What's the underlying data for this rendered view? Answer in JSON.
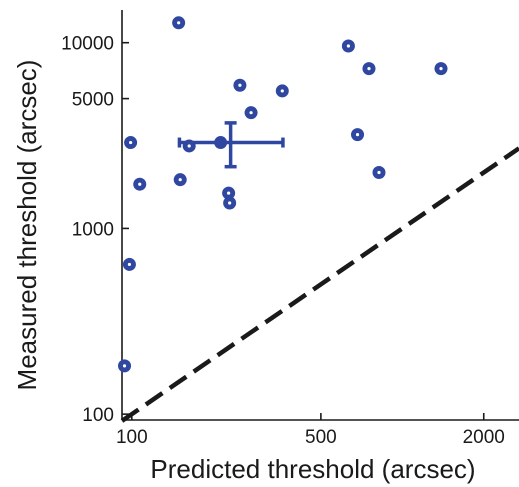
{
  "chart_data": {
    "type": "scatter",
    "xlabel": "Predicted threshold (arcsec)",
    "ylabel": "Measured threshold (arcsec)",
    "x_scale": "log",
    "y_scale": "log",
    "xlim": [
      92,
      2700
    ],
    "ylim": [
      93,
      15000
    ],
    "x_ticks": [
      100,
      500,
      2000
    ],
    "x_tick_labels": [
      "100",
      "500",
      "2000"
    ],
    "y_ticks": [
      100,
      1000,
      5000,
      10000
    ],
    "y_tick_labels": [
      "100",
      "1000",
      "5000",
      "10000"
    ],
    "grid": false,
    "legend": "none",
    "colors": {
      "points": "#2f47a0",
      "point_center": "#ffffff",
      "errorbar": "#2f47a0",
      "reference_line": "#1a1a1a",
      "axes": "#1a1a1a"
    },
    "reference_line": {
      "style": "dashed",
      "description": "y = x",
      "points": [
        [
          92,
          92
        ],
        [
          2700,
          2700
        ]
      ]
    },
    "series": [
      {
        "points": [
          [
            94,
            182
          ],
          [
            98,
            640
          ],
          [
            99,
            2900
          ],
          [
            107,
            1730
          ],
          [
            149,
            12800
          ],
          [
            151,
            1830
          ],
          [
            163,
            2780
          ],
          [
            228,
            1550
          ],
          [
            230,
            1370
          ],
          [
            251,
            5900
          ],
          [
            276,
            4200
          ],
          [
            360,
            5500
          ],
          [
            632,
            9600
          ],
          [
            683,
            3200
          ],
          [
            753,
            7250
          ],
          [
            820,
            2000
          ],
          [
            1390,
            7250
          ]
        ]
      },
      {
        "points": [
          [
            213,
            2900
          ]
        ],
        "error": {
          "x_low": 150,
          "x_high": 362,
          "y_low": 2150,
          "y_high": 3700
        }
      }
    ]
  }
}
